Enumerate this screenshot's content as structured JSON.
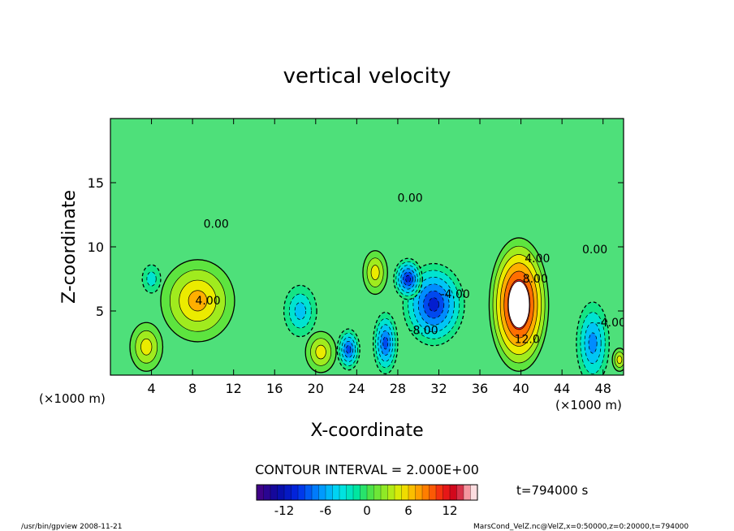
{
  "chart_data": {
    "type": "heatmap",
    "title": "vertical velocity",
    "xlabel": "X-coordinate",
    "ylabel": "Z-coordinate",
    "x_unit_left": "(×1000 m)",
    "x_unit_right": "(×1000 m)",
    "xlim": [
      0,
      50
    ],
    "ylim": [
      0,
      20
    ],
    "x_ticks": [
      4,
      8,
      12,
      16,
      20,
      24,
      28,
      32,
      36,
      40,
      44,
      48
    ],
    "y_ticks": [
      5,
      10,
      15
    ],
    "contour_interval_label": "CONTOUR INTERVAL = 2.000E+00",
    "time_label": "t=794000 s",
    "colorbar": {
      "min": -16,
      "max": 16,
      "ticks": [
        -12,
        -6,
        0,
        6,
        12
      ]
    },
    "contour_labels": [
      {
        "text": "4.00",
        "x": 9.5,
        "y": 5.5
      },
      {
        "text": "0.00",
        "x": 10.3,
        "y": 11.5
      },
      {
        "text": "0.00",
        "x": 29.2,
        "y": 13.5
      },
      {
        "text": "-4.00",
        "x": 33.6,
        "y": 6.0
      },
      {
        "text": "-8.00",
        "x": 30.5,
        "y": 3.2
      },
      {
        "text": "4.00",
        "x": 41.6,
        "y": 8.8
      },
      {
        "text": "8.00",
        "x": 41.4,
        "y": 7.2
      },
      {
        "text": "12.0",
        "x": 40.6,
        "y": 2.5
      },
      {
        "text": "0.00",
        "x": 47.2,
        "y": 9.5
      },
      {
        "text": "-4.00",
        "x": 48.8,
        "y": 3.8
      }
    ],
    "features": [
      {
        "kind": "max",
        "x": 39.8,
        "y": 5.5,
        "value": 16
      },
      {
        "kind": "max",
        "x": 8.5,
        "y": 5.8,
        "value": 7
      },
      {
        "kind": "max",
        "x": 3.5,
        "y": 2.2,
        "value": 6
      },
      {
        "kind": "max",
        "x": 20.5,
        "y": 1.8,
        "value": 6
      },
      {
        "kind": "max",
        "x": 25.8,
        "y": 8.0,
        "value": 6
      },
      {
        "kind": "max",
        "x": 49.6,
        "y": 1.2,
        "value": 5
      },
      {
        "kind": "min",
        "x": 31.5,
        "y": 5.5,
        "value": -12
      },
      {
        "kind": "min",
        "x": 29.0,
        "y": 7.5,
        "value": -11
      },
      {
        "kind": "min",
        "x": 26.8,
        "y": 2.5,
        "value": -10
      },
      {
        "kind": "min",
        "x": 23.2,
        "y": 2.0,
        "value": -9
      },
      {
        "kind": "min",
        "x": 47.0,
        "y": 2.5,
        "value": -7
      },
      {
        "kind": "min",
        "x": 18.5,
        "y": 5.0,
        "value": -5
      },
      {
        "kind": "min",
        "x": 4.0,
        "y": 7.5,
        "value": -4
      }
    ]
  },
  "footer": {
    "left": "/usr/bin/gpview  2008-11-21",
    "right": "MarsCond_VelZ.nc@VelZ,x=0:50000,z=0:20000,t=794000"
  }
}
